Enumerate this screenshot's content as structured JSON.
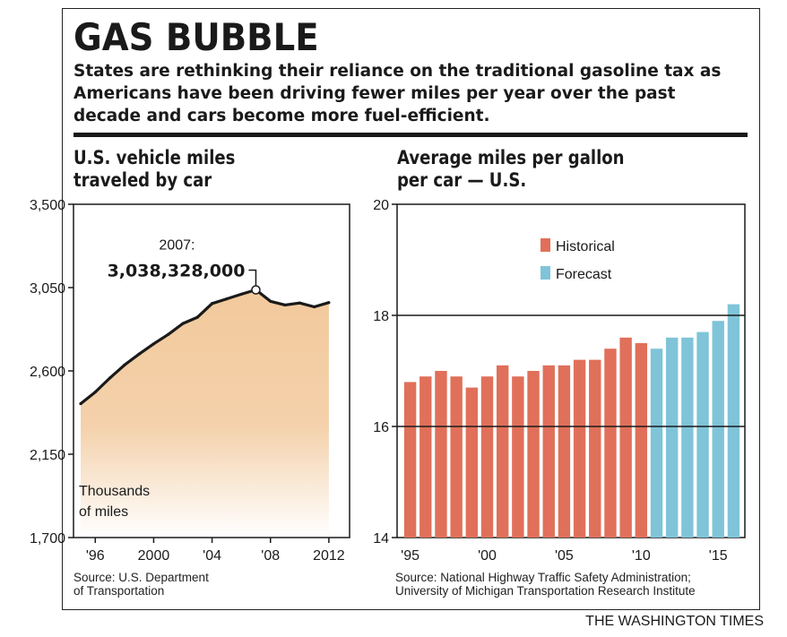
{
  "header": {
    "title": "GAS BUBBLE",
    "subtitle": "States are rethinking their reliance on the traditional gasoline tax as Americans have been driving fewer miles per year over the past decade and cars become more fuel-efficient."
  },
  "credit": "THE WASHINGTON TIMES",
  "colors": {
    "area": "#f2c99c",
    "historical": "#e0705a",
    "forecast": "#7fc4d8",
    "line": "#1a1a1a"
  },
  "chart_data": [
    {
      "type": "area",
      "title_lines": [
        "U.S. vehicle miles",
        "traveled by car"
      ],
      "y_unit_lines": [
        "Thousands",
        "of miles"
      ],
      "ylim": [
        1700,
        3500
      ],
      "xlim": [
        1995,
        2013
      ],
      "y_ticks": [
        1700,
        2150,
        2600,
        3050,
        3500
      ],
      "y_tick_labels": [
        "1,700",
        "2,150",
        "2,600",
        "3,050",
        "3,500"
      ],
      "x_ticks": [
        1996,
        2000,
        2004,
        2008,
        2012
      ],
      "x_tick_labels": [
        "'96",
        "2000",
        "'04",
        "'08",
        "2012"
      ],
      "x": [
        1995,
        1996,
        1997,
        1998,
        1999,
        2000,
        2001,
        2002,
        2003,
        2004,
        2005,
        2006,
        2007,
        2008,
        2009,
        2010,
        2011,
        2012
      ],
      "values": [
        2423,
        2486,
        2562,
        2632,
        2691,
        2746,
        2797,
        2856,
        2890,
        2964,
        2989,
        3014,
        3038,
        2976,
        2956,
        2967,
        2946,
        2969
      ],
      "annotation": {
        "x": 2007,
        "label_year": "2007:",
        "label_value": "3,038,328,000"
      },
      "source_lines": [
        "Source: U.S. Department",
        "of Transportation"
      ]
    },
    {
      "type": "bar",
      "title_lines": [
        "Average miles per gallon",
        "per car — U.S."
      ],
      "ylim": [
        14,
        20
      ],
      "y_ticks": [
        14,
        16,
        18,
        20
      ],
      "y_tick_labels": [
        "14",
        "16",
        "18",
        "20"
      ],
      "x_tick_labels": [
        "'95",
        "'00",
        "'05",
        "'10",
        "'15"
      ],
      "x_tick_years": [
        1995,
        2000,
        2005,
        2010,
        2015
      ],
      "legend": {
        "historical": "Historical",
        "forecast": "Forecast",
        "position": "top-left"
      },
      "historical": {
        "x": [
          1995,
          1996,
          1997,
          1998,
          1999,
          2000,
          2001,
          2002,
          2003,
          2004,
          2005,
          2006,
          2007,
          2008,
          2009,
          2010
        ],
        "values": [
          16.8,
          16.9,
          17.0,
          16.9,
          16.7,
          16.9,
          17.1,
          16.9,
          17.0,
          17.1,
          17.1,
          17.2,
          17.2,
          17.4,
          17.6,
          17.5
        ]
      },
      "forecast": {
        "x": [
          2011,
          2012,
          2013,
          2014,
          2015,
          2016
        ],
        "values": [
          17.4,
          17.6,
          17.6,
          17.7,
          17.9,
          18.2
        ]
      },
      "source_lines": [
        "Source: National Highway Traffic Safety Administration;",
        "University of Michigan Transportation Research Institute"
      ]
    }
  ]
}
